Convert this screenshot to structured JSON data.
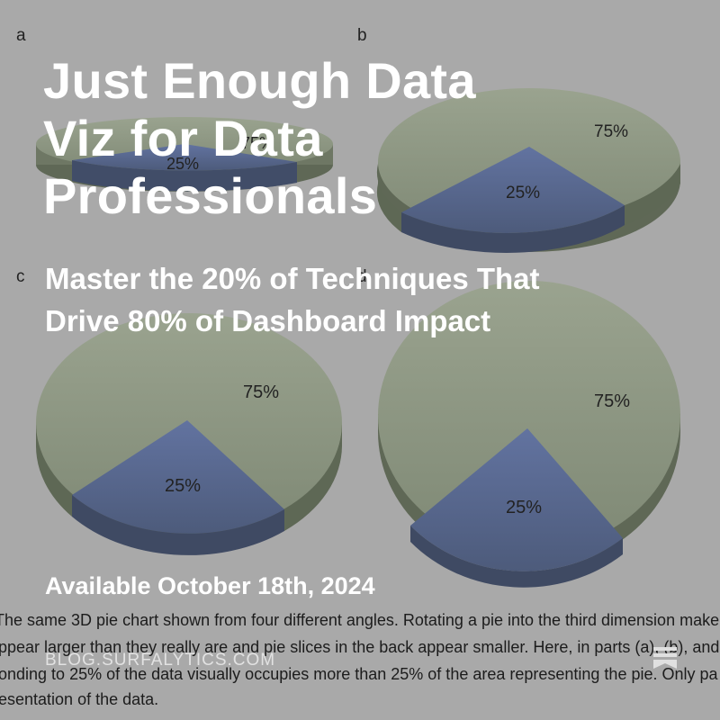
{
  "background": {
    "panels": [
      {
        "letter": "a",
        "slices": [
          {
            "label": "75%",
            "value": 75,
            "color": "#8e9883"
          },
          {
            "label": "25%",
            "value": 25,
            "color": "#5a6a8c"
          }
        ]
      },
      {
        "letter": "b",
        "slices": [
          {
            "label": "75%",
            "value": 75,
            "color": "#8e9883"
          },
          {
            "label": "25%",
            "value": 25,
            "color": "#5a6a8c"
          }
        ]
      },
      {
        "letter": "c",
        "slices": [
          {
            "label": "75%",
            "value": 75,
            "color": "#8e9883"
          },
          {
            "label": "25%",
            "value": 25,
            "color": "#5a6a8c"
          }
        ]
      },
      {
        "letter": "d",
        "slices": [
          {
            "label": "75%",
            "value": 75,
            "color": "#8e9883"
          },
          {
            "label": "25%",
            "value": 25,
            "color": "#5a6a8c"
          }
        ]
      }
    ],
    "caption_lines": [
      "The same 3D pie chart shown from four different angles. Rotating a pie into the third dimension make",
      "ppear larger than they really are and pie slices in the back appear smaller. Here, in parts (a), (b), and",
      "onding to 25% of the data visually occupies more than 25% of the area representing the pie. Only pa",
      "esentation of the data."
    ]
  },
  "title_lines": [
    "Just Enough Data",
    "Viz for Data",
    "Professionals"
  ],
  "subtitle_lines": [
    "Master the 20% of Techniques That",
    "Drive 80% of Dashboard Impact"
  ],
  "availability": "Available October 18th, 2024",
  "footer": {
    "site": "BLOG.SURFALYTICS.COM",
    "icon": "stack-icon"
  },
  "colors": {
    "overlay_text": "#ffffff",
    "background": "#a9a9a9",
    "pie_large": "#8e9883",
    "pie_small": "#5a6a8c"
  }
}
